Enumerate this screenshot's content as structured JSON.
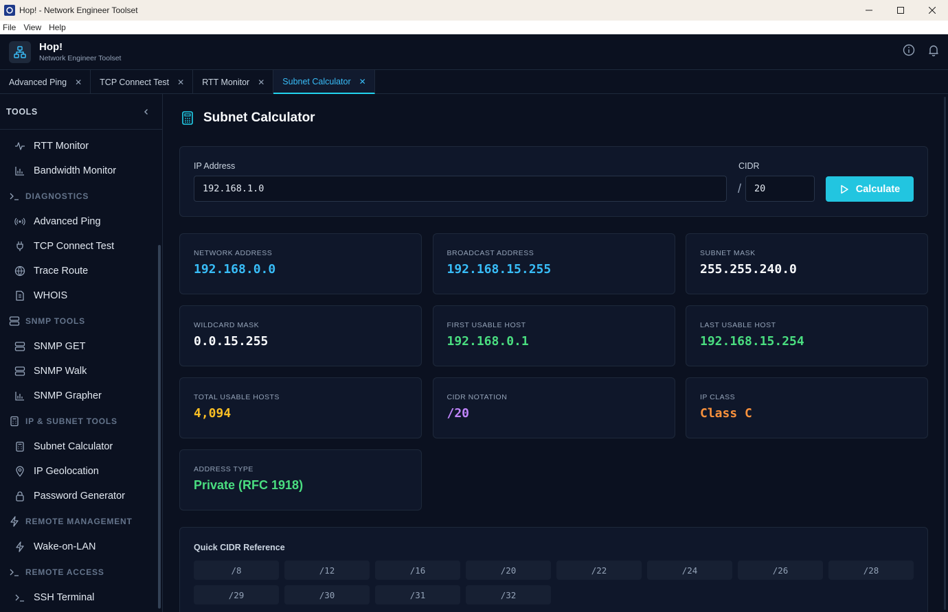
{
  "window": {
    "title": "Hop! - Network Engineer Toolset"
  },
  "menu": [
    "File",
    "View",
    "Help"
  ],
  "app": {
    "name": "Hop!",
    "subtitle": "Network Engineer Toolset"
  },
  "tabs": [
    {
      "label": "Advanced Ping",
      "active": false
    },
    {
      "label": "TCP Connect Test",
      "active": false
    },
    {
      "label": "RTT Monitor",
      "active": false
    },
    {
      "label": "Subnet Calculator",
      "active": true
    }
  ],
  "sidebar": {
    "header": "TOOLS",
    "entries": [
      {
        "kind": "item",
        "label": "RTT Monitor",
        "icon": "activity-icon"
      },
      {
        "kind": "item",
        "label": "Bandwidth Monitor",
        "icon": "bar-chart-icon"
      },
      {
        "kind": "section",
        "label": "DIAGNOSTICS",
        "icon": "terminal-icon"
      },
      {
        "kind": "item",
        "label": "Advanced Ping",
        "icon": "radio-icon"
      },
      {
        "kind": "item",
        "label": "TCP Connect Test",
        "icon": "plug-icon"
      },
      {
        "kind": "item",
        "label": "Trace Route",
        "icon": "globe-icon"
      },
      {
        "kind": "item",
        "label": "WHOIS",
        "icon": "document-icon"
      },
      {
        "kind": "section",
        "label": "SNMP TOOLS",
        "icon": "server-icon"
      },
      {
        "kind": "item",
        "label": "SNMP GET",
        "icon": "server-icon"
      },
      {
        "kind": "item",
        "label": "SNMP Walk",
        "icon": "server-icon"
      },
      {
        "kind": "item",
        "label": "SNMP Grapher",
        "icon": "bar-chart-icon"
      },
      {
        "kind": "section",
        "label": "IP & SUBNET TOOLS",
        "icon": "calculator-icon"
      },
      {
        "kind": "item",
        "label": "Subnet Calculator",
        "icon": "calculator-icon"
      },
      {
        "kind": "item",
        "label": "IP Geolocation",
        "icon": "map-pin-icon"
      },
      {
        "kind": "item",
        "label": "Password Generator",
        "icon": "lock-icon"
      },
      {
        "kind": "section",
        "label": "REMOTE MANAGEMENT",
        "icon": "zap-icon"
      },
      {
        "kind": "item",
        "label": "Wake-on-LAN",
        "icon": "zap-icon"
      },
      {
        "kind": "section",
        "label": "REMOTE ACCESS",
        "icon": "terminal-icon"
      },
      {
        "kind": "item",
        "label": "SSH Terminal",
        "icon": "terminal-icon"
      }
    ]
  },
  "page": {
    "title": "Subnet Calculator"
  },
  "form": {
    "ip_label": "IP Address",
    "ip_value": "192.168.1.0",
    "cidr_label": "CIDR",
    "cidr_sep": "/",
    "cidr_value": "20",
    "calc_label": "Calculate"
  },
  "results": [
    {
      "label": "NETWORK ADDRESS",
      "value": "192.168.0.0",
      "color": "#38bdf8",
      "mono": true
    },
    {
      "label": "BROADCAST ADDRESS",
      "value": "192.168.15.255",
      "color": "#38bdf8",
      "mono": true
    },
    {
      "label": "SUBNET MASK",
      "value": "255.255.240.0",
      "color": "#f8fafc",
      "mono": true
    },
    {
      "label": "WILDCARD MASK",
      "value": "0.0.15.255",
      "color": "#f8fafc",
      "mono": true
    },
    {
      "label": "FIRST USABLE HOST",
      "value": "192.168.0.1",
      "color": "#4ade80",
      "mono": true
    },
    {
      "label": "LAST USABLE HOST",
      "value": "192.168.15.254",
      "color": "#4ade80",
      "mono": true
    },
    {
      "label": "TOTAL USABLE HOSTS",
      "value": "4,094",
      "color": "#fbbf24",
      "mono": true
    },
    {
      "label": "CIDR NOTATION",
      "value": "/20",
      "color": "#c084fc",
      "mono": true
    },
    {
      "label": "IP CLASS",
      "value": "Class C",
      "color": "#fb923c",
      "mono": true
    },
    {
      "label": "ADDRESS TYPE",
      "value": "Private (RFC 1918)",
      "color": "#4ade80",
      "mono": false
    }
  ],
  "reference": {
    "title": "Quick CIDR Reference",
    "items": [
      "/8",
      "/12",
      "/16",
      "/20",
      "/22",
      "/24",
      "/26",
      "/28",
      "/29",
      "/30",
      "/31",
      "/32"
    ]
  }
}
